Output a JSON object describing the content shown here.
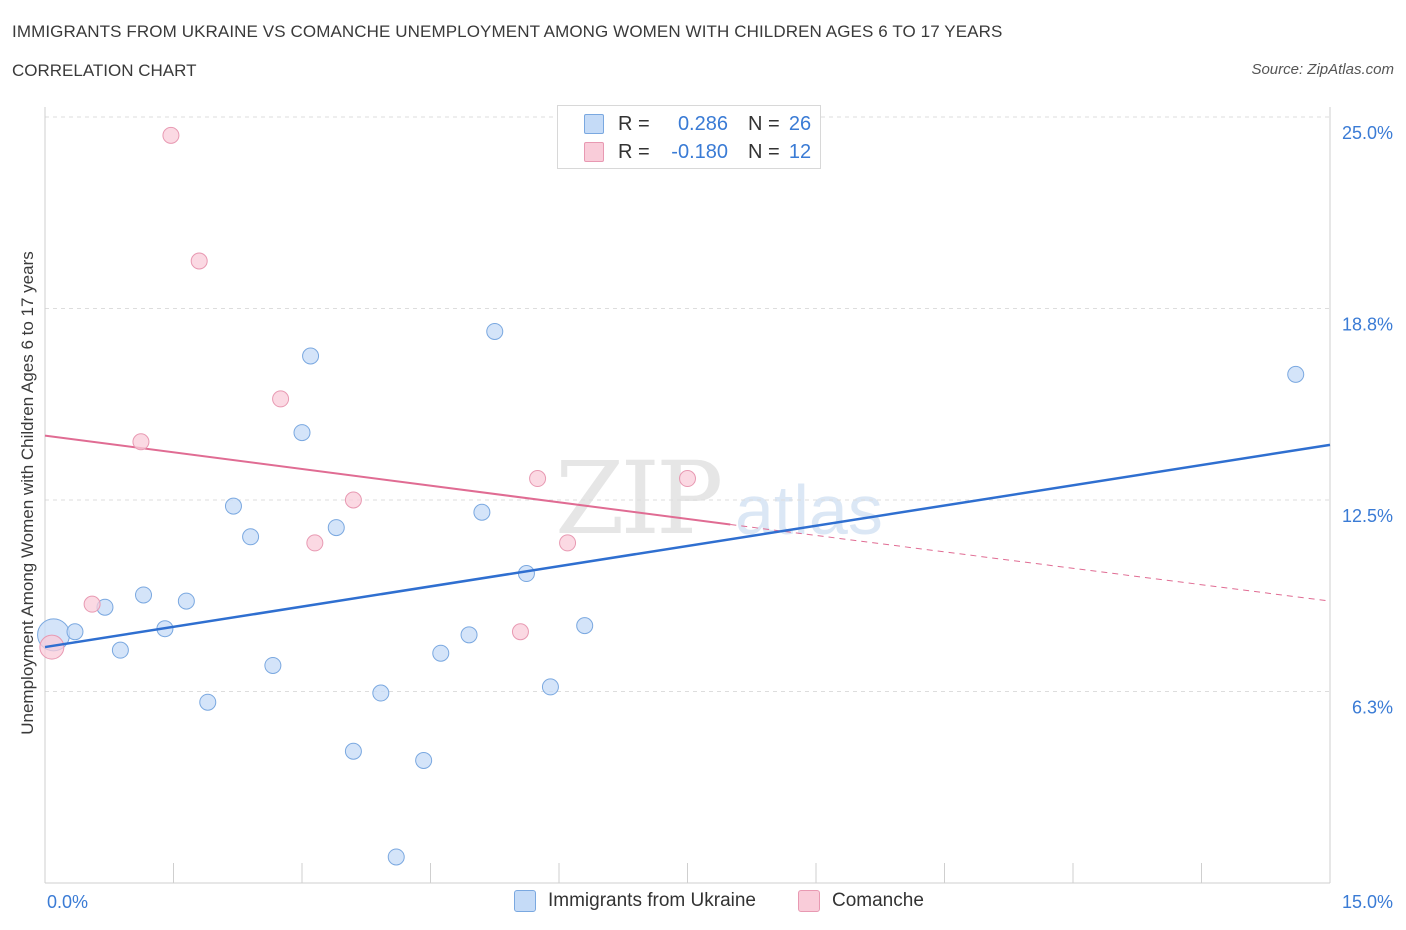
{
  "title": "IMMIGRANTS FROM UKRAINE VS COMANCHE UNEMPLOYMENT AMONG WOMEN WITH CHILDREN AGES 6 TO 17 YEARS",
  "subtitle": "CORRELATION CHART",
  "source": "Source: ZipAtlas.com",
  "watermark": {
    "zip": "ZIP",
    "atlas": "atlas"
  },
  "colors": {
    "ukraine_fill": "#c5dbf7",
    "ukraine_stroke": "#7aa8e0",
    "ukraine_line": "#2f6fd0",
    "comanche_fill": "#f9ccd9",
    "comanche_stroke": "#e899b2",
    "comanche_line": "#e06c93",
    "tick_label": "#3a7bd5",
    "grid": "#dddddd"
  },
  "legend_top": {
    "rows": [
      {
        "r_label": "R =",
        "r_value": "0.286",
        "n_label": "N =",
        "n_value": "26"
      },
      {
        "r_label": "R =",
        "r_value": "-0.180",
        "n_label": "N =",
        "n_value": "12"
      }
    ]
  },
  "chart_data": {
    "type": "scatter",
    "ylabel": "Unemployment Among Women with Children Ages 6 to 17 years",
    "xlim": [
      0,
      15
    ],
    "ylim": [
      0,
      25
    ],
    "x_tick_labels": [
      "0.0%",
      "15.0%"
    ],
    "y_ticks": [
      {
        "value": 6.25,
        "label": "6.3%"
      },
      {
        "value": 12.5,
        "label": "12.5%"
      },
      {
        "value": 18.75,
        "label": "18.8%"
      },
      {
        "value": 25.0,
        "label": "25.0%"
      }
    ],
    "grid": "horizontal-dashed",
    "legend_placement": "bottom-center",
    "series": [
      {
        "name": "Immigrants from Ukraine",
        "points": [
          [
            0.1,
            8.1
          ],
          [
            0.35,
            8.2
          ],
          [
            0.7,
            9.0
          ],
          [
            0.88,
            7.6
          ],
          [
            1.15,
            9.4
          ],
          [
            1.4,
            8.3
          ],
          [
            1.65,
            9.2
          ],
          [
            1.9,
            5.9
          ],
          [
            2.2,
            12.3
          ],
          [
            2.4,
            11.3
          ],
          [
            2.66,
            7.1
          ],
          [
            3.0,
            14.7
          ],
          [
            3.1,
            17.2
          ],
          [
            3.4,
            11.6
          ],
          [
            3.6,
            4.3
          ],
          [
            3.92,
            6.2
          ],
          [
            4.1,
            0.85
          ],
          [
            4.42,
            4.0
          ],
          [
            4.62,
            7.5
          ],
          [
            4.95,
            8.1
          ],
          [
            5.1,
            12.1
          ],
          [
            5.25,
            18.0
          ],
          [
            5.62,
            10.1
          ],
          [
            5.9,
            6.4
          ],
          [
            6.3,
            8.4
          ],
          [
            14.6,
            16.6
          ]
        ],
        "trend": {
          "x": [
            0,
            15
          ],
          "y": [
            7.7,
            14.3
          ]
        }
      },
      {
        "name": "Comanche",
        "points": [
          [
            0.08,
            7.7
          ],
          [
            0.55,
            9.1
          ],
          [
            1.12,
            14.4
          ],
          [
            1.47,
            24.4
          ],
          [
            1.8,
            20.3
          ],
          [
            2.75,
            15.8
          ],
          [
            3.15,
            11.1
          ],
          [
            3.6,
            12.5
          ],
          [
            5.55,
            8.2
          ],
          [
            5.75,
            13.2
          ],
          [
            6.1,
            11.1
          ],
          [
            7.5,
            13.2
          ]
        ],
        "trend": {
          "x": [
            0,
            8
          ],
          "y": [
            14.6,
            11.7
          ]
        },
        "trend_extension": {
          "x": [
            8,
            15
          ],
          "y": [
            11.7,
            9.2
          ]
        }
      }
    ]
  }
}
